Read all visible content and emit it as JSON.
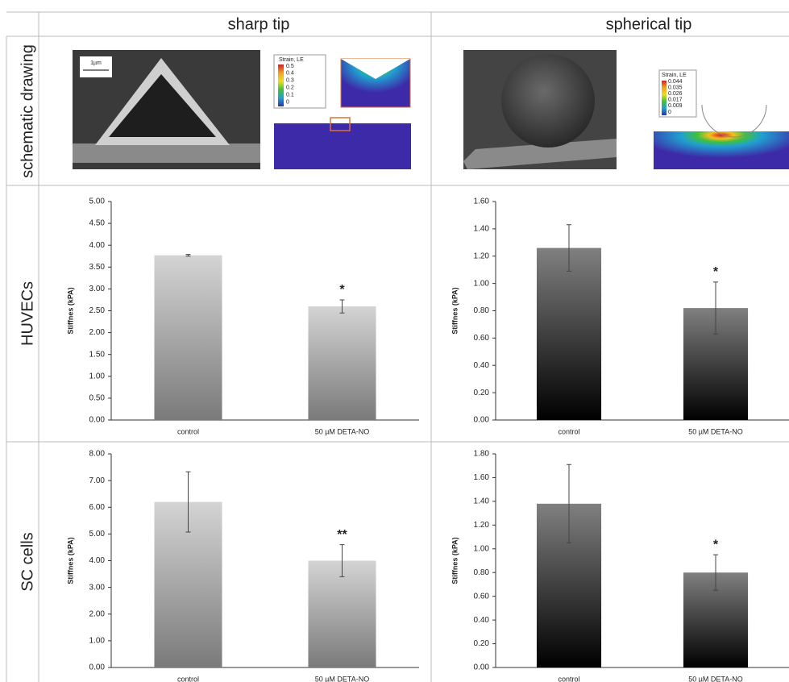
{
  "table": {
    "columns": [
      "sharp tip",
      "spherical tip"
    ],
    "rows": [
      "schematic drawing",
      "HUVECs",
      "SC cells"
    ]
  },
  "schematics": [
    {
      "scale_bar": "1µm",
      "legend_title": "Strain, LE",
      "legend_values": [
        "0.5",
        "0.4",
        "0.3",
        "0.2",
        "0.1",
        "0"
      ]
    },
    {
      "legend_title": "Strain, LE",
      "legend_values": [
        "0.044",
        "0.035",
        "0.026",
        "0.017",
        "0.009",
        "0"
      ]
    }
  ],
  "chart_data": [
    {
      "type": "bar",
      "y_label": "Stiffnes (kPA)",
      "categories": [
        "control",
        "50 µM DETA-NO"
      ],
      "values": [
        3.77,
        2.6
      ],
      "errors": [
        0.02,
        0.15
      ],
      "significance": [
        null,
        "*"
      ],
      "color_top": "#d4d4d4",
      "color_bottom": "#7a7a7a",
      "ylim": [
        0,
        5
      ],
      "yticks": [
        {
          "value": 0,
          "label": "0.00"
        },
        {
          "value": 0.5,
          "label": "0.50"
        },
        {
          "value": 1,
          "label": "1.00"
        },
        {
          "value": 1.5,
          "label": "1.50"
        },
        {
          "value": 2,
          "label": "2.00"
        },
        {
          "value": 2.5,
          "label": "2.50"
        },
        {
          "value": 3,
          "label": "3.00"
        },
        {
          "value": 3.5,
          "label": "3.50"
        },
        {
          "value": 4,
          "label": "4.00"
        },
        {
          "value": 4.5,
          "label": "4.50"
        },
        {
          "value": 5,
          "label": "5.00"
        }
      ]
    },
    {
      "type": "bar",
      "y_label": "Stiffnes (kPA)",
      "categories": [
        "control",
        "50 µM DETA-NO"
      ],
      "values": [
        1.26,
        0.82
      ],
      "errors": [
        0.17,
        0.19
      ],
      "significance": [
        null,
        "*"
      ],
      "color_top": "#808080",
      "color_bottom": "#000000",
      "ylim": [
        0,
        1.6
      ],
      "yticks": [
        {
          "value": 0,
          "label": "0.00"
        },
        {
          "value": 0.2,
          "label": "0.20"
        },
        {
          "value": 0.4,
          "label": "0.40"
        },
        {
          "value": 0.6,
          "label": "0.60"
        },
        {
          "value": 0.8,
          "label": "0.80"
        },
        {
          "value": 1,
          "label": "1.00"
        },
        {
          "value": 1.2,
          "label": "1.20"
        },
        {
          "value": 1.4,
          "label": "1.40"
        },
        {
          "value": 1.6,
          "label": "1.60"
        }
      ]
    },
    {
      "type": "bar",
      "y_label": "Stiffnes (kPA)",
      "categories": [
        "control",
        "50 µM DETA-NO"
      ],
      "values": [
        6.2,
        4.0
      ],
      "errors": [
        1.13,
        0.6
      ],
      "significance": [
        null,
        "**"
      ],
      "color_top": "#d4d4d4",
      "color_bottom": "#7a7a7a",
      "ylim": [
        0,
        8
      ],
      "yticks": [
        {
          "value": 0,
          "label": "0.00"
        },
        {
          "value": 1,
          "label": "1.00"
        },
        {
          "value": 2,
          "label": "2.00"
        },
        {
          "value": 3,
          "label": "3.00"
        },
        {
          "value": 4,
          "label": "4.00"
        },
        {
          "value": 5,
          "label": "5.00"
        },
        {
          "value": 6,
          "label": "6.00"
        },
        {
          "value": 7,
          "label": "7.00"
        },
        {
          "value": 8,
          "label": "8.00"
        }
      ]
    },
    {
      "type": "bar",
      "y_label": "Stiffnes (kPA)",
      "categories": [
        "control",
        "50 µM DETA-NO"
      ],
      "values": [
        1.38,
        0.8
      ],
      "errors": [
        0.33,
        0.15
      ],
      "significance": [
        null,
        "*"
      ],
      "color_top": "#808080",
      "color_bottom": "#000000",
      "ylim": [
        0,
        1.8
      ],
      "yticks": [
        {
          "value": 0,
          "label": "0.00"
        },
        {
          "value": 0.2,
          "label": "0.20"
        },
        {
          "value": 0.4,
          "label": "0.40"
        },
        {
          "value": 0.6,
          "label": "0.60"
        },
        {
          "value": 0.8,
          "label": "0.80"
        },
        {
          "value": 1,
          "label": "1.00"
        },
        {
          "value": 1.2,
          "label": "1.20"
        },
        {
          "value": 1.4,
          "label": "1.40"
        },
        {
          "value": 1.6,
          "label": "1.60"
        },
        {
          "value": 1.8,
          "label": "1.80"
        }
      ]
    }
  ]
}
